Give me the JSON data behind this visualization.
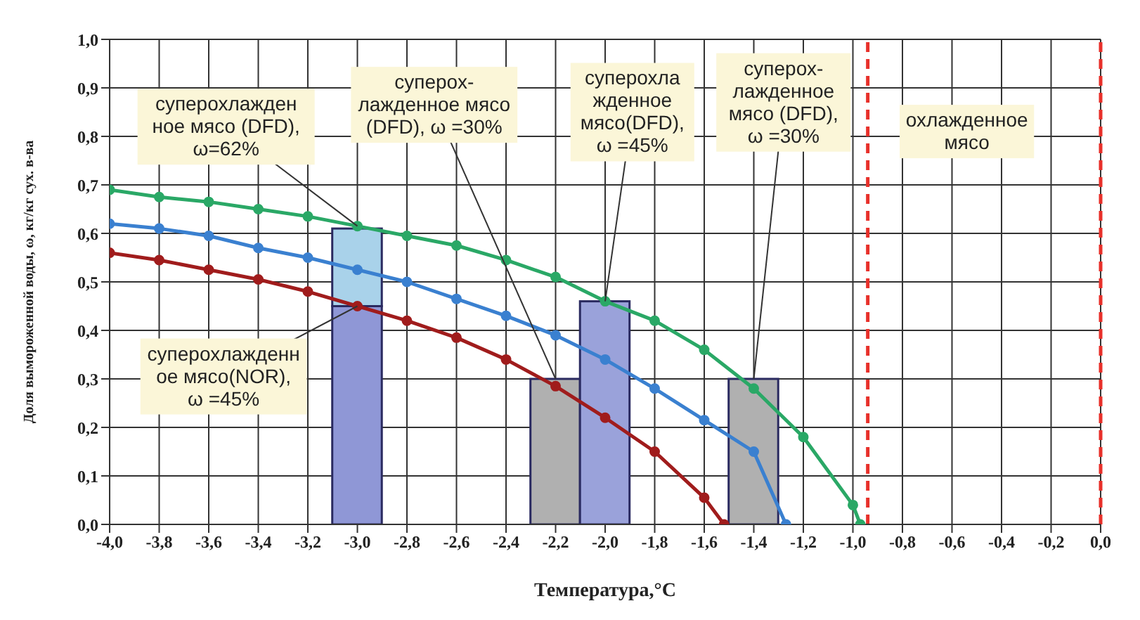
{
  "chart_data": {
    "type": "line",
    "xlabel": "Температура,°С",
    "ylabel": "Доля вымороженной воды, ω, кг/кг сух. в-ва",
    "xlim": [
      -4.0,
      0.0
    ],
    "ylim": [
      0.0,
      1.0
    ],
    "xticks": [
      {
        "value": -4.0,
        "label": "-4,0"
      },
      {
        "value": -3.8,
        "label": "-3,8"
      },
      {
        "value": -3.6,
        "label": "-3,6"
      },
      {
        "value": -3.4,
        "label": "-3,4"
      },
      {
        "value": -3.2,
        "label": "-3,2"
      },
      {
        "value": -3.0,
        "label": "-3,0"
      },
      {
        "value": -2.8,
        "label": "-2,8"
      },
      {
        "value": -2.6,
        "label": "-2,6"
      },
      {
        "value": -2.4,
        "label": "-2,4"
      },
      {
        "value": -2.2,
        "label": "-2,2"
      },
      {
        "value": -2.0,
        "label": "-2,0"
      },
      {
        "value": -1.8,
        "label": "-1,8"
      },
      {
        "value": -1.6,
        "label": "-1,6"
      },
      {
        "value": -1.4,
        "label": "-1,4"
      },
      {
        "value": -1.2,
        "label": "-1,2"
      },
      {
        "value": -1.0,
        "label": "-1,0"
      },
      {
        "value": -0.8,
        "label": "-0,8"
      },
      {
        "value": -0.6,
        "label": "-0,6"
      },
      {
        "value": -0.4,
        "label": "-0,4"
      },
      {
        "value": -0.2,
        "label": "-0,2"
      },
      {
        "value": 0.0,
        "label": "0,0"
      }
    ],
    "yticks": [
      {
        "value": 0.0,
        "label": "0,0"
      },
      {
        "value": 0.1,
        "label": "0,1"
      },
      {
        "value": 0.2,
        "label": "0,2"
      },
      {
        "value": 0.3,
        "label": "0,3"
      },
      {
        "value": 0.4,
        "label": "0,4"
      },
      {
        "value": 0.5,
        "label": "0,5"
      },
      {
        "value": 0.6,
        "label": "0,6"
      },
      {
        "value": 0.7,
        "label": "0,7"
      },
      {
        "value": 0.8,
        "label": "0,8"
      },
      {
        "value": 0.9,
        "label": "0,9"
      },
      {
        "value": 1.0,
        "label": "1,0"
      }
    ],
    "grid": true,
    "marker": "circle",
    "stacked": true,
    "series": [
      {
        "type": "bar",
        "x": [
          -3.0,
          -2.2,
          -2.0,
          -1.4
        ],
        "values": [
          0.45,
          0.3,
          0.46,
          0.3
        ],
        "colors": [
          "#8f97d6",
          "#b0b0b0",
          "#9aa2da",
          "#b0b0b0"
        ]
      },
      {
        "type": "bar",
        "x": [
          -3.0
        ],
        "values": [
          0.16
        ],
        "colors": [
          "#a9d2ea"
        ]
      },
      {
        "color": "#2aa866",
        "x": [
          -4.0,
          -3.8,
          -3.6,
          -3.4,
          -3.2,
          -3.0,
          -2.8,
          -2.6,
          -2.4,
          -2.2,
          -2.0,
          -1.8,
          -1.6,
          -1.4,
          -1.2,
          -1.0,
          -0.97
        ],
        "values": [
          0.69,
          0.675,
          0.665,
          0.65,
          0.635,
          0.615,
          0.595,
          0.575,
          0.545,
          0.51,
          0.46,
          0.42,
          0.36,
          0.28,
          0.18,
          0.04,
          0.0
        ]
      },
      {
        "color": "#3a80d0",
        "x": [
          -4.0,
          -3.8,
          -3.6,
          -3.4,
          -3.2,
          -3.0,
          -2.8,
          -2.6,
          -2.4,
          -2.2,
          -2.0,
          -1.8,
          -1.6,
          -1.4,
          -1.27
        ],
        "values": [
          0.62,
          0.61,
          0.595,
          0.57,
          0.55,
          0.525,
          0.5,
          0.465,
          0.43,
          0.39,
          0.34,
          0.28,
          0.215,
          0.15,
          0.0
        ]
      },
      {
        "color": "#a01c1c",
        "x": [
          -4.0,
          -3.8,
          -3.6,
          -3.4,
          -3.2,
          -3.0,
          -2.8,
          -2.6,
          -2.4,
          -2.2,
          -2.0,
          -1.8,
          -1.6,
          -1.52
        ],
        "values": [
          0.56,
          0.545,
          0.525,
          0.505,
          0.48,
          0.45,
          0.42,
          0.385,
          0.34,
          0.285,
          0.22,
          0.15,
          0.055,
          0.0
        ]
      }
    ],
    "ref_lines": [
      {
        "axis": "x",
        "value": -0.94,
        "color": "#e8302a",
        "line_style": "dashed"
      },
      {
        "axis": "x",
        "value": 0.0,
        "color": "#e8302a",
        "line_style": "dashed"
      }
    ],
    "annotations": [
      {
        "text": "суперохлажден\nное мясо (DFD),\nω=62%",
        "x": -3.0,
        "y": 0.615
      },
      {
        "text": "суперох-\nлажденное мясо\n(DFD), ω =30%",
        "x": -2.2,
        "y": 0.3
      },
      {
        "text": "суперохла\nжденное\nмясо(DFD),\nω =45%",
        "x": -2.0,
        "y": 0.46
      },
      {
        "text": "суперох-\nлажденное\nмясо (DFD),\nω =30%",
        "x": -1.4,
        "y": 0.3
      },
      {
        "text": "суперохлажденн\nое мясо(NOR),\nω =45%",
        "x": -3.0,
        "y": 0.45
      },
      "охлажденное\nмясо"
    ]
  }
}
